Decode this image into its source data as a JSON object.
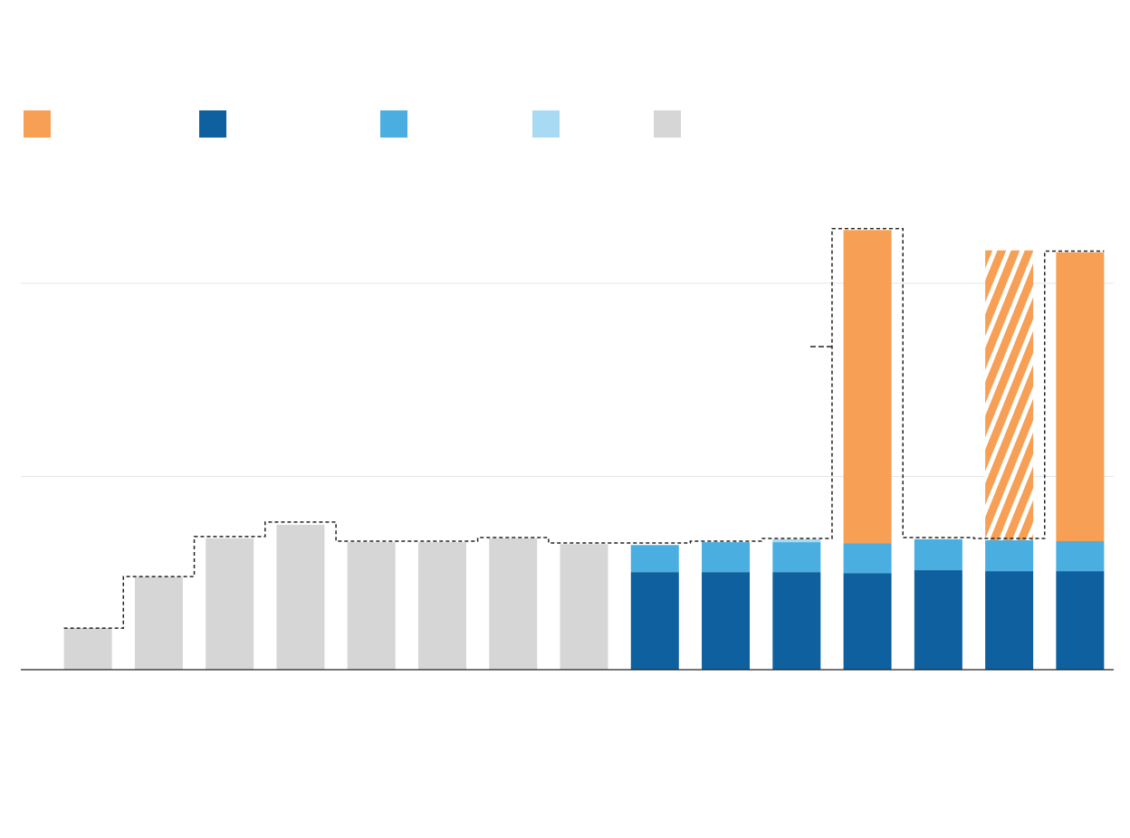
{
  "chart_data": {
    "type": "stacked_bar",
    "categories": [
      null,
      null,
      null,
      null,
      null,
      null,
      null,
      null,
      null,
      null,
      null,
      null,
      null,
      null,
      null
    ],
    "ylim": [
      0,
      240
    ],
    "yticks": [
      100,
      200
    ],
    "grid": true,
    "series": [
      {
        "color": "#d6d6d6",
        "values": [
          21.5,
          48,
          68,
          75,
          66,
          66,
          68,
          65,
          null,
          null,
          null,
          null,
          null,
          null,
          null
        ]
      },
      {
        "color": "#0e609e",
        "values": [
          null,
          null,
          null,
          null,
          null,
          null,
          null,
          null,
          50.5,
          50.5,
          50.5,
          50,
          51.5,
          51,
          51
        ]
      },
      {
        "color": "#4aaee0",
        "values": [
          null,
          null,
          null,
          null,
          null,
          null,
          null,
          null,
          14,
          15.5,
          15.5,
          15.5,
          16,
          16,
          15.5
        ]
      },
      {
        "color": "#a8dbf3",
        "values": [
          null,
          null,
          null,
          null,
          null,
          null,
          null,
          null,
          null,
          null,
          1.5,
          null,
          null,
          null,
          null
        ]
      },
      {
        "color": "#f7a055",
        "values": [
          null,
          null,
          null,
          null,
          null,
          null,
          null,
          null,
          null,
          null,
          null,
          162,
          null,
          null,
          149.5
        ]
      },
      {
        "color": "#f7a055",
        "hatch": true,
        "in_legend": false,
        "values": [
          null,
          null,
          null,
          null,
          null,
          null,
          null,
          null,
          null,
          null,
          null,
          null,
          null,
          150,
          null
        ]
      }
    ],
    "legend_order": [
      4,
      1,
      2,
      3,
      0
    ],
    "total_step": {
      "color": "#222222",
      "dashed": true,
      "values": [
        21.5,
        48.2,
        68.9,
        76.4,
        66.5,
        66.5,
        68.4,
        65.6,
        65.6,
        66.5,
        67.9,
        228.3,
        68.4,
        67.9,
        216.6
      ],
      "marker_values": [
        null,
        null,
        null,
        null,
        null,
        null,
        null,
        null,
        null,
        null,
        null,
        167.2,
        null,
        null,
        null
      ]
    }
  }
}
